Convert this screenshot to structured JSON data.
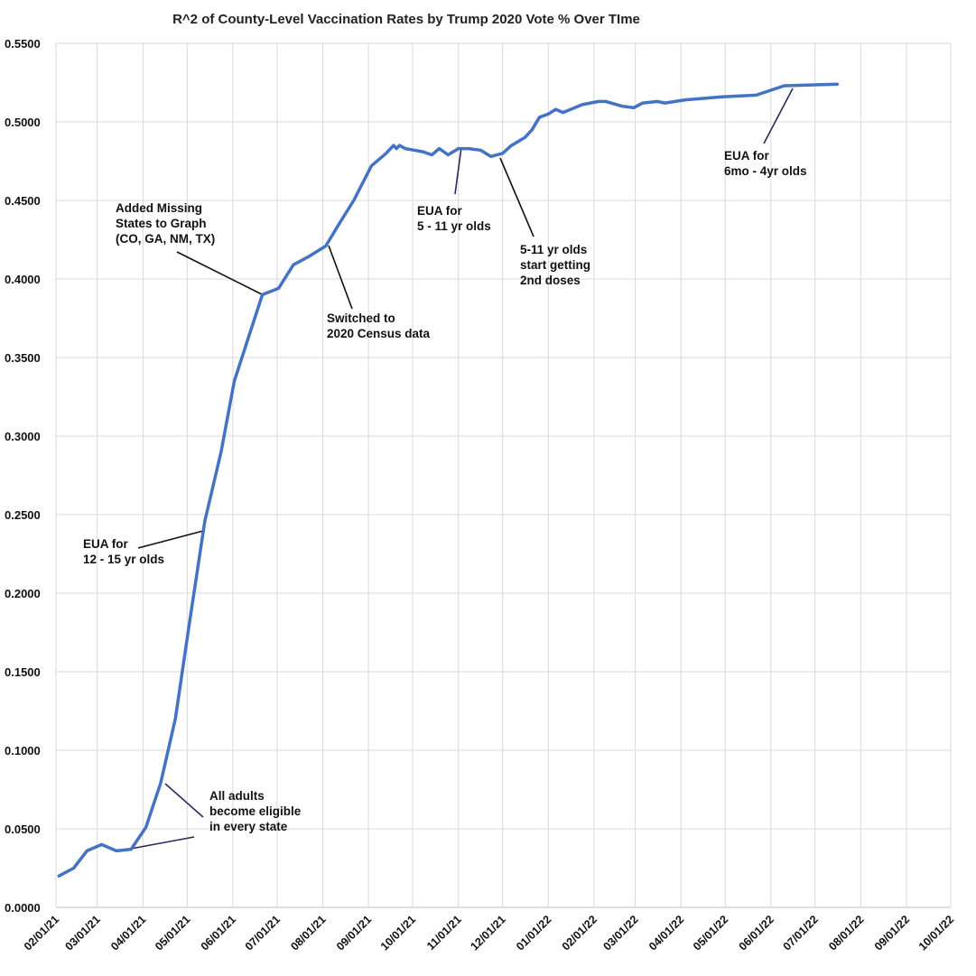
{
  "chart_data": {
    "type": "line",
    "title": "R^2 of County-Level Vaccination Rates by Trump 2020 Vote % Over TIme",
    "xlabel": "",
    "ylabel": "",
    "xlim": [
      "02/01/21",
      "10/01/22"
    ],
    "ylim": [
      0,
      0.55
    ],
    "grid": true,
    "legend": "none",
    "line_color": "#4472C4",
    "x_ticks": [
      "02/01/21",
      "03/01/21",
      "04/01/21",
      "05/01/21",
      "06/01/21",
      "07/01/21",
      "08/01/21",
      "09/01/21",
      "10/01/21",
      "11/01/21",
      "12/01/21",
      "01/01/22",
      "02/01/22",
      "03/01/22",
      "04/01/22",
      "05/01/22",
      "06/01/22",
      "07/01/22",
      "08/01/22",
      "09/01/22",
      "10/01/22"
    ],
    "y_ticks": [
      "0.0000",
      "0.0500",
      "0.1000",
      "0.1500",
      "0.2000",
      "0.2500",
      "0.3000",
      "0.3500",
      "0.4000",
      "0.4500",
      "0.5000",
      "0.5500"
    ],
    "series": [
      {
        "x": [
          "02/03/21",
          "02/13/21",
          "02/22/21",
          "03/04/21",
          "03/14/21",
          "03/24/21",
          "04/03/21",
          "04/13/21",
          "04/23/21",
          "05/03/21",
          "05/13/21",
          "05/24/21",
          "06/02/21",
          "06/12/21",
          "06/21/21",
          "07/02/21",
          "07/12/21",
          "07/22/21",
          "08/03/21",
          "08/12/21",
          "08/22/21",
          "09/03/21",
          "09/13/21",
          "09/18/21",
          "09/20/21",
          "09/22/21",
          "09/26/21",
          "10/02/21",
          "10/08/21",
          "10/14/21",
          "10/19/21",
          "10/25/21",
          "11/01/21",
          "11/08/21",
          "11/16/21",
          "11/23/21",
          "12/01/21",
          "12/07/21",
          "12/16/21",
          "12/21/21",
          "12/26/21",
          "01/01/22",
          "01/06/22",
          "01/11/22",
          "01/24/22",
          "02/04/22",
          "02/09/22",
          "02/20/22",
          "02/28/22",
          "03/06/22",
          "03/16/22",
          "03/21/22",
          "04/04/22",
          "04/29/22",
          "05/22/22",
          "06/10/22",
          "07/16/22"
        ],
        "y": [
          0.02,
          0.025,
          0.036,
          0.04,
          0.036,
          0.037,
          0.051,
          0.079,
          0.12,
          0.184,
          0.246,
          0.29,
          0.335,
          0.364,
          0.39,
          0.394,
          0.409,
          0.414,
          0.421,
          0.435,
          0.45,
          0.472,
          0.48,
          0.485,
          0.483,
          0.485,
          0.483,
          0.482,
          0.481,
          0.479,
          0.483,
          0.479,
          0.483,
          0.483,
          0.482,
          0.478,
          0.48,
          0.485,
          0.49,
          0.495,
          0.503,
          0.505,
          0.508,
          0.506,
          0.511,
          0.513,
          0.513,
          0.51,
          0.509,
          0.512,
          0.513,
          0.512,
          0.514,
          0.516,
          0.517,
          0.523,
          0.524
        ]
      }
    ],
    "annotations": [
      {
        "lines": [
          "All adults",
          "become eligible",
          "in every state"
        ]
      },
      {
        "lines": [
          "EUA for",
          "12 - 15 yr olds"
        ]
      },
      {
        "lines": [
          "Added Missing",
          "States to Graph",
          "(CO, GA, NM, TX)"
        ]
      },
      {
        "lines": [
          "Switched to",
          "2020 Census data"
        ]
      },
      {
        "lines": [
          "EUA for",
          "5 - 11 yr olds"
        ]
      },
      {
        "lines": [
          "5-11 yr olds",
          "start getting",
          "2nd doses"
        ]
      },
      {
        "lines": [
          "EUA for",
          "6mo - 4yr olds"
        ]
      }
    ]
  }
}
